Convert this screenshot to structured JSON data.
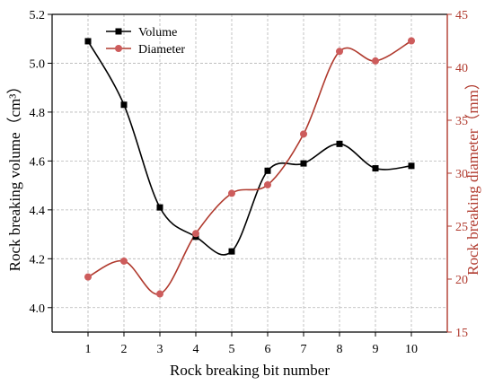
{
  "chart_data": {
    "type": "line",
    "xlabel": "Rock breaking bit number",
    "ylabel_left": "Rock breaking volume",
    "ylabel_left_unit": "（cm³）",
    "ylabel_right": "Rock breaking diameter",
    "ylabel_right_unit": "（mm）",
    "x": [
      1,
      2,
      3,
      4,
      5,
      6,
      7,
      8,
      9,
      10
    ],
    "xlim": [
      0,
      11
    ],
    "xticks": [
      "1",
      "2",
      "3",
      "4",
      "5",
      "6",
      "7",
      "8",
      "9",
      "10"
    ],
    "ylim_left": [
      3.9,
      5.2
    ],
    "yticks_left": [
      "4.0",
      "4.2",
      "4.4",
      "4.6",
      "4.8",
      "5.0",
      "5.2"
    ],
    "ylim_right": [
      15,
      45
    ],
    "yticks_right": [
      "15",
      "20",
      "25",
      "30",
      "35",
      "40",
      "45"
    ],
    "grid": true,
    "legend_position": "top-left",
    "series": [
      {
        "name": "Volume",
        "axis": "left",
        "marker": "square",
        "color": "#000000",
        "values": [
          5.09,
          4.83,
          4.41,
          4.29,
          4.23,
          4.56,
          4.59,
          4.67,
          4.57,
          4.58
        ]
      },
      {
        "name": "Diameter",
        "axis": "right",
        "marker": "circle",
        "color": "#b03a2e",
        "marker_color": "#cd5c5c",
        "values": [
          20.2,
          21.7,
          18.6,
          24.3,
          28.1,
          28.9,
          33.7,
          41.5,
          40.6,
          42.5
        ]
      }
    ]
  }
}
